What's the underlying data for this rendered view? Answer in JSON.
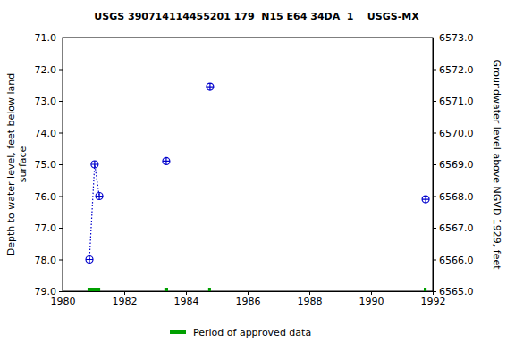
{
  "chart_data": {
    "type": "scatter",
    "title": "USGS 390714114455201 179  N15 E64 34DA  1    USGS-MX",
    "ylabel": [
      "Depth to water level, feet below land",
      "surface"
    ],
    "y2label": "Groundwater level above NGVD 1929, feet",
    "xlim": [
      1980,
      1992
    ],
    "xticks": [
      1980,
      1982,
      1984,
      1986,
      1988,
      1990,
      1992
    ],
    "ylim": [
      79,
      71
    ],
    "yticks": [
      {
        "value": 71,
        "label": "71.0"
      },
      {
        "value": 72,
        "label": "72.0"
      },
      {
        "value": 73,
        "label": "73.0"
      },
      {
        "value": 74,
        "label": "74.0"
      },
      {
        "value": 75,
        "label": "75.0"
      },
      {
        "value": 76,
        "label": "76.0"
      },
      {
        "value": 77,
        "label": "77.0"
      },
      {
        "value": 78,
        "label": "78.0"
      },
      {
        "value": 79,
        "label": "79.0"
      }
    ],
    "y2lim": [
      6565,
      6573
    ],
    "y2ticks": [
      {
        "value": 6573,
        "label": "6573.0"
      },
      {
        "value": 6572,
        "label": "6572.0"
      },
      {
        "value": 6571,
        "label": "6571.0"
      },
      {
        "value": 6570,
        "label": "6570.0"
      },
      {
        "value": 6569,
        "label": "6569.0"
      },
      {
        "value": 6568,
        "label": "6568.0"
      },
      {
        "value": 6567,
        "label": "6567.0"
      },
      {
        "value": 6566,
        "label": "6566.0"
      },
      {
        "value": 6565,
        "label": "6565.0"
      }
    ],
    "series": [
      {
        "color": "#0000cc",
        "marker": "circle",
        "line_style": "dotted",
        "x": [
          1980.87,
          1981.04,
          1981.19
        ],
        "values": [
          78.0,
          75.0,
          76.0
        ]
      },
      {
        "color": "#0000cc",
        "marker": "circle",
        "line_style": "none",
        "x": [
          1983.36,
          1984.78,
          1991.77
        ],
        "values": [
          74.9,
          72.55,
          76.1
        ]
      }
    ],
    "approved_periods": {
      "name": "Period of approved data",
      "color": "#00a000",
      "ranges": [
        [
          1980.81,
          1981.22
        ],
        [
          1983.3,
          1983.42
        ],
        [
          1984.72,
          1984.81
        ],
        [
          1991.71,
          1991.8
        ]
      ]
    }
  }
}
